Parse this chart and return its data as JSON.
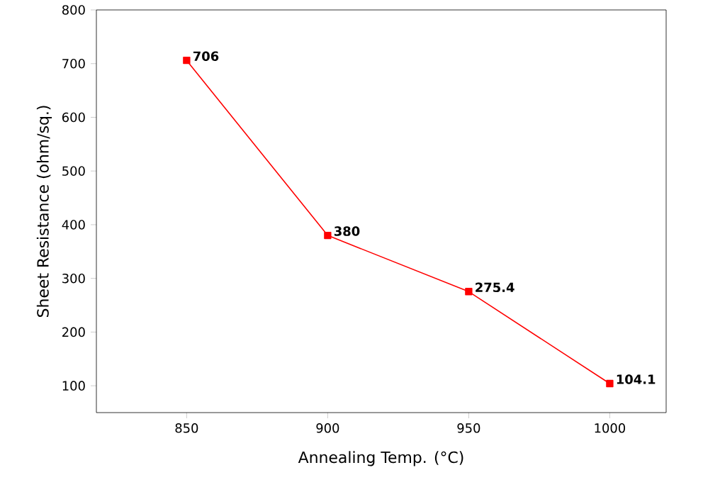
{
  "chart_data": {
    "type": "line",
    "xlabel": "Annealing Temp. (°C)",
    "ylabel": "Sheet Resistance (ohm/sq.)",
    "x": [
      850,
      900,
      950,
      1000
    ],
    "series": [
      {
        "color": "#ff0000",
        "values": [
          706,
          380,
          275.4,
          104.1
        ]
      }
    ],
    "xlim": [
      818,
      1020
    ],
    "ylim": [
      50,
      800
    ],
    "xticks": [
      850,
      900,
      950,
      1000
    ],
    "yticks": [
      100,
      200,
      300,
      400,
      500,
      600,
      700,
      800
    ],
    "data_labels": true,
    "marker": "square",
    "line_style": "solid"
  }
}
